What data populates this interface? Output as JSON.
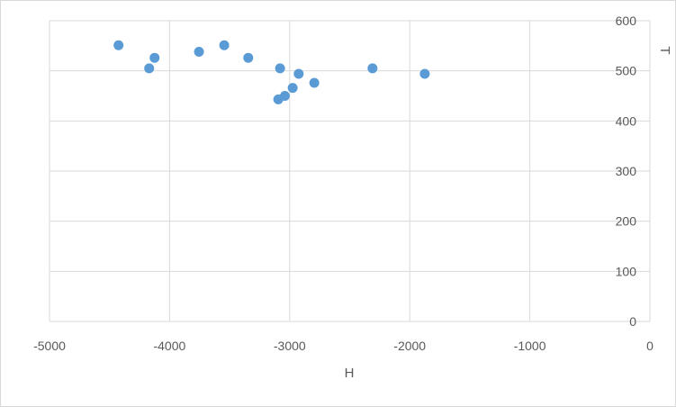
{
  "chart_data": {
    "type": "scatter",
    "title": "",
    "xlabel": "H",
    "ylabel": "T",
    "xlim": [
      -5000,
      0
    ],
    "ylim": [
      0,
      600
    ],
    "x_ticks": [
      -5000,
      -4000,
      -3000,
      -2000,
      -1000,
      0
    ],
    "y_ticks": [
      0,
      100,
      200,
      300,
      400,
      500,
      600
    ],
    "grid": true,
    "legend": "none",
    "y_axis_position": "right",
    "marker_color": "#5b9bd5",
    "gridline_color": "#d9d9d9",
    "series": [
      {
        "points": [
          {
            "x": -4425,
            "y": 551
          },
          {
            "x": -4170,
            "y": 505
          },
          {
            "x": -4125,
            "y": 526
          },
          {
            "x": -3755,
            "y": 538
          },
          {
            "x": -3545,
            "y": 551
          },
          {
            "x": -3345,
            "y": 526
          },
          {
            "x": -3080,
            "y": 505
          },
          {
            "x": -3095,
            "y": 443
          },
          {
            "x": -3040,
            "y": 450
          },
          {
            "x": -2975,
            "y": 466
          },
          {
            "x": -2925,
            "y": 494
          },
          {
            "x": -2795,
            "y": 476
          },
          {
            "x": -2310,
            "y": 505
          },
          {
            "x": -1875,
            "y": 494
          }
        ]
      }
    ]
  }
}
